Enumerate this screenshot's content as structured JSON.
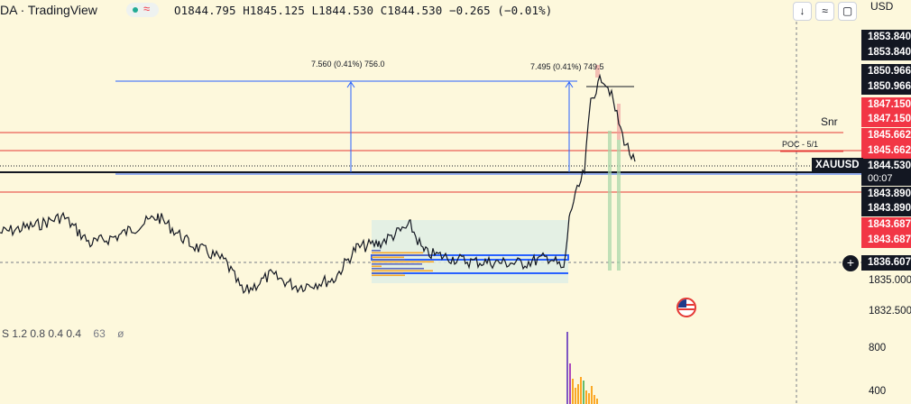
{
  "header": {
    "symbol": "DA · TradingView",
    "ohlc": "O1844.795  H1845.125  L1844.530  C1844.530  −0.265 (−0.01%)",
    "buttons": [
      {
        "name": "scroll-down-button",
        "label": "↓"
      },
      {
        "name": "collapse-button",
        "label": "≈"
      },
      {
        "name": "window-button",
        "label": "▢"
      }
    ]
  },
  "price_axis": {
    "currency": "USD",
    "labels": [
      {
        "text": "1853.840",
        "bg": "#131722",
        "fg": "#ffffff"
      },
      {
        "text": "1853.840",
        "bg": "#131722",
        "fg": "#ffffff"
      },
      {
        "text": "1850.966",
        "bg": "#131722",
        "fg": "#ffffff"
      },
      {
        "text": "1850.966",
        "bg": "#131722",
        "fg": "#ffffff"
      },
      {
        "text": "1847.150",
        "bg": "#f23645",
        "fg": "#ffffff"
      },
      {
        "text": "1847.150",
        "bg": "#f23645",
        "fg": "#ffffff"
      },
      {
        "text": "1845.662",
        "bg": "#f23645",
        "fg": "#ffffff"
      },
      {
        "text": "1845.662",
        "bg": "#f23645",
        "fg": "#ffffff"
      },
      {
        "text": "1844.530",
        "bg": "#131722",
        "fg": "#ffffff"
      },
      {
        "text": "1843.890",
        "bg": "#131722",
        "fg": "#ffffff"
      },
      {
        "text": "1843.890",
        "bg": "#131722",
        "fg": "#ffffff"
      },
      {
        "text": "1843.687",
        "bg": "#f23645",
        "fg": "#ffffff"
      },
      {
        "text": "1843.687",
        "bg": "#f23645",
        "fg": "#ffffff"
      },
      {
        "text": "1836.607",
        "bg": "#131722",
        "fg": "#ffffff"
      }
    ],
    "ticks": [
      "1835.000",
      "1832.500"
    ],
    "volume_ticks": [
      "800",
      "400"
    ],
    "countdown": "00:07"
  },
  "chart": {
    "symbol_tag": "XAUUSD",
    "annotation_left": "7.560 (0.41%) 756.0",
    "annotation_right": "7.495 (0.41%) 749.5",
    "poc_label": "POC - 5/1",
    "snr_label": "Snr",
    "indicator_values": "S 1.2 0.8 0.4 0.4",
    "indicator_count": "63",
    "indicator_symbol": "ø"
  },
  "colors": {
    "background": "#fdf8dc",
    "up": "#22ab94",
    "down": "#f23645",
    "line_blue": "#2962ff",
    "line_red": "#e53935"
  }
}
